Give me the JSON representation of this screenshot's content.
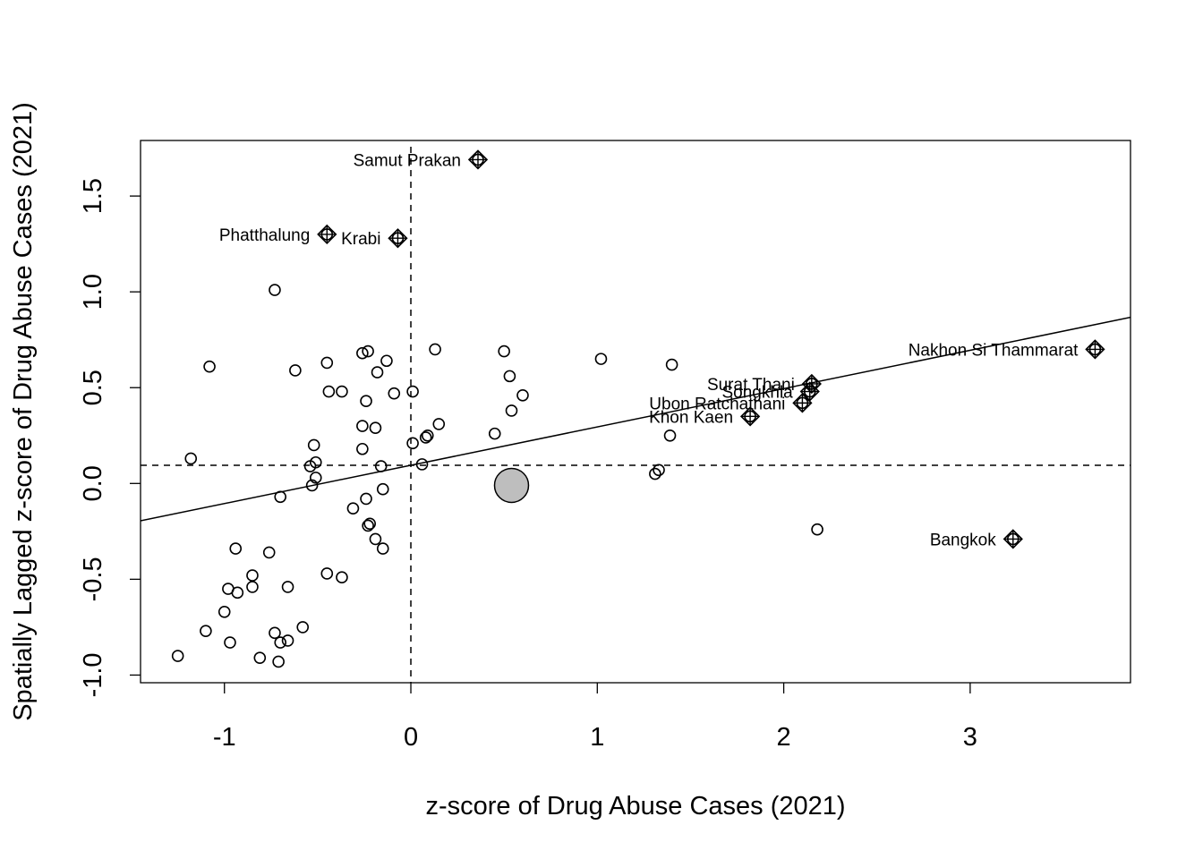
{
  "chart_data": {
    "type": "scatter",
    "title": "",
    "xlabel": "z-score of Drug Abuse Cases (2021)",
    "ylabel": "Spatially Lagged z-score of Drug Abuse Cases (2021)",
    "xlim": [
      -1.45,
      3.86
    ],
    "ylim": [
      -1.04,
      1.79
    ],
    "x_ticks": [
      "-1",
      "0",
      "1",
      "2",
      "3"
    ],
    "y_ticks": [
      "-1.0",
      "-0.5",
      "0.0",
      "0.5",
      "1.0",
      "1.5"
    ],
    "x_mean_line": 0,
    "y_mean_line": 0.095,
    "regression": {
      "intercept": 0.095,
      "slope": 0.2
    },
    "points": [
      [
        -1.25,
        -0.9
      ],
      [
        -1.18,
        0.13
      ],
      [
        -1.1,
        -0.77
      ],
      [
        -1.08,
        0.61
      ],
      [
        -1.0,
        -0.67
      ],
      [
        -0.98,
        -0.55
      ],
      [
        -0.97,
        -0.83
      ],
      [
        -0.94,
        -0.34
      ],
      [
        -0.93,
        -0.57
      ],
      [
        -0.85,
        -0.48
      ],
      [
        -0.85,
        -0.54
      ],
      [
        -0.81,
        -0.91
      ],
      [
        -0.76,
        -0.36
      ],
      [
        -0.73,
        -0.78
      ],
      [
        -0.73,
        1.01
      ],
      [
        -0.71,
        -0.93
      ],
      [
        -0.7,
        -0.07
      ],
      [
        -0.7,
        -0.83
      ],
      [
        -0.66,
        -0.82
      ],
      [
        -0.66,
        -0.54
      ],
      [
        -0.62,
        0.59
      ],
      [
        -0.58,
        -0.75
      ],
      [
        -0.54,
        0.09
      ],
      [
        -0.53,
        -0.01
      ],
      [
        -0.52,
        0.2
      ],
      [
        -0.51,
        0.11
      ],
      [
        -0.51,
        0.03
      ],
      [
        -0.45,
        0.63
      ],
      [
        -0.45,
        -0.47
      ],
      [
        -0.44,
        0.48
      ],
      [
        -0.37,
        0.48
      ],
      [
        -0.37,
        -0.49
      ],
      [
        -0.31,
        -0.13
      ],
      [
        -0.26,
        0.18
      ],
      [
        -0.26,
        0.3
      ],
      [
        -0.26,
        0.68
      ],
      [
        -0.24,
        -0.08
      ],
      [
        -0.24,
        0.43
      ],
      [
        -0.23,
        -0.22
      ],
      [
        -0.23,
        0.69
      ],
      [
        -0.22,
        -0.21
      ],
      [
        -0.19,
        0.29
      ],
      [
        -0.19,
        -0.29
      ],
      [
        -0.18,
        0.58
      ],
      [
        -0.16,
        0.09
      ],
      [
        -0.15,
        -0.03
      ],
      [
        -0.15,
        -0.34
      ],
      [
        -0.13,
        0.64
      ],
      [
        -0.09,
        0.47
      ],
      [
        0.01,
        0.48
      ],
      [
        0.01,
        0.21
      ],
      [
        0.06,
        0.1
      ],
      [
        0.08,
        0.24
      ],
      [
        0.09,
        0.25
      ],
      [
        0.13,
        0.7
      ],
      [
        0.15,
        0.31
      ],
      [
        0.45,
        0.26
      ],
      [
        0.5,
        0.69
      ],
      [
        0.53,
        0.56
      ],
      [
        0.54,
        0.38
      ],
      [
        0.6,
        0.46
      ],
      [
        1.02,
        0.65
      ],
      [
        1.31,
        0.05
      ],
      [
        1.33,
        0.07
      ],
      [
        1.39,
        0.25
      ],
      [
        1.4,
        0.62
      ],
      [
        2.18,
        -0.24
      ]
    ],
    "highlight_point": [
      0.54,
      -0.01
    ],
    "influential_points": [
      {
        "label": "Samut Prakan",
        "x": 0.36,
        "y": 1.69
      },
      {
        "label": "Phatthalung",
        "x": -0.45,
        "y": 1.3
      },
      {
        "label": "Krabi",
        "x": -0.07,
        "y": 1.28
      },
      {
        "label": "Nakhon Si Thammarat",
        "x": 3.67,
        "y": 0.7
      },
      {
        "label": "Surat Thani",
        "x": 2.15,
        "y": 0.52
      },
      {
        "label": "Songkhla",
        "x": 2.14,
        "y": 0.48
      },
      {
        "label": "Ubon Ratchathani",
        "x": 2.1,
        "y": 0.42
      },
      {
        "label": "Khon Kaen",
        "x": 1.82,
        "y": 0.35
      },
      {
        "label": "Bangkok",
        "x": 3.23,
        "y": -0.29
      }
    ]
  }
}
